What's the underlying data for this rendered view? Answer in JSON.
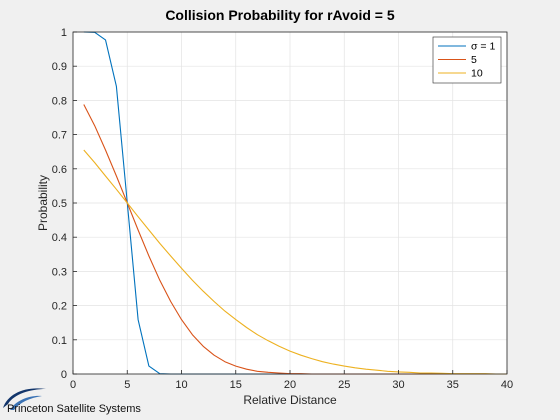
{
  "logo": {
    "text": "Princeton Satellite Systems"
  },
  "chart_data": {
    "type": "line",
    "title": "Collision Probability for rAvoid = 5",
    "xlabel": "Relative Distance",
    "ylabel": "Probability",
    "xlim": [
      0,
      40
    ],
    "ylim": [
      0,
      1
    ],
    "xticks": [
      0,
      5,
      10,
      15,
      20,
      25,
      30,
      35,
      40
    ],
    "yticks": [
      0,
      0.1,
      0.2,
      0.3,
      0.4,
      0.5,
      0.6,
      0.7,
      0.8,
      0.9,
      1
    ],
    "grid": true,
    "legend_position": "top-right",
    "x": [
      1,
      2,
      3,
      4,
      5,
      6,
      7,
      8,
      9,
      10,
      11,
      12,
      13,
      14,
      15,
      16,
      17,
      18,
      19,
      20,
      21,
      22,
      23,
      24,
      25,
      26,
      27,
      28,
      29,
      30,
      31,
      32,
      33,
      34,
      35,
      36,
      37,
      38,
      39,
      40
    ],
    "series": [
      {
        "name": "σ = 1",
        "color": "#0072bd",
        "values": [
          1.0,
          0.999,
          0.977,
          0.841,
          0.5,
          0.159,
          0.023,
          0.001,
          0,
          0,
          0,
          0,
          0,
          0,
          0,
          0,
          0,
          0,
          0,
          0,
          0,
          0,
          0,
          0,
          0,
          0,
          0,
          0,
          0,
          0,
          0,
          0,
          0,
          0,
          0,
          0,
          0,
          0,
          0,
          0
        ]
      },
      {
        "name": "5",
        "color": "#d95319",
        "values": [
          0.788,
          0.726,
          0.655,
          0.579,
          0.5,
          0.421,
          0.345,
          0.274,
          0.212,
          0.159,
          0.115,
          0.081,
          0.055,
          0.036,
          0.023,
          0.014,
          0.008,
          0.005,
          0.003,
          0.001,
          0.001,
          0,
          0,
          0,
          0,
          0,
          0,
          0,
          0,
          0,
          0,
          0,
          0,
          0,
          0,
          0,
          0,
          0,
          0,
          0
        ]
      },
      {
        "name": "10",
        "color": "#edb120",
        "values": [
          0.655,
          0.618,
          0.579,
          0.54,
          0.5,
          0.46,
          0.421,
          0.382,
          0.345,
          0.309,
          0.274,
          0.242,
          0.212,
          0.184,
          0.159,
          0.136,
          0.115,
          0.097,
          0.081,
          0.067,
          0.055,
          0.045,
          0.036,
          0.029,
          0.023,
          0.018,
          0.014,
          0.011,
          0.008,
          0.006,
          0.005,
          0.003,
          0.003,
          0.002,
          0.001,
          0.001,
          0.001,
          0.001,
          0,
          0
        ]
      }
    ]
  }
}
